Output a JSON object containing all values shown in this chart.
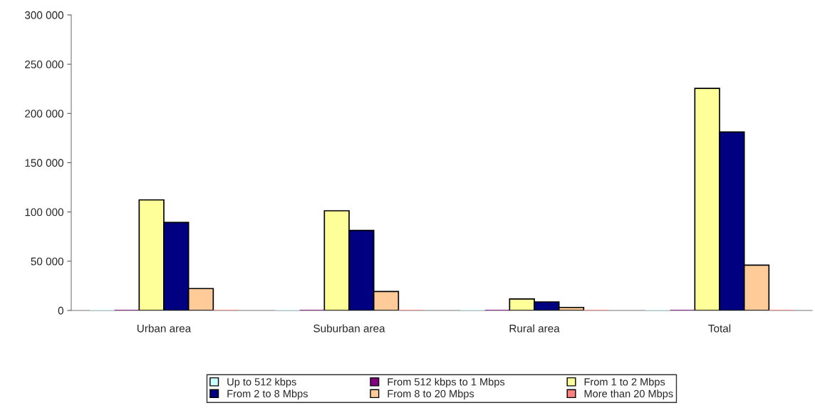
{
  "chart_data": {
    "type": "bar",
    "categories": [
      "Urban area",
      "Suburban area",
      "Rural area",
      "Total"
    ],
    "series": [
      {
        "name": "Up to 512 kbps",
        "color": "#ccffff",
        "values": [
          0,
          0,
          0,
          0
        ]
      },
      {
        "name": "From 512 kbps to 1 Mbps",
        "color": "#800080",
        "values": [
          0,
          0,
          0,
          0
        ]
      },
      {
        "name": "From 1 to 2 Mbps",
        "color": "#ffff99",
        "values": [
          112200,
          101200,
          11600,
          225500
        ]
      },
      {
        "name": "From 2 to 8 Mbps",
        "color": "#000080",
        "values": [
          89400,
          81200,
          8700,
          181200
        ]
      },
      {
        "name": "From 8 to 20 Mbps",
        "color": "#ffcc99",
        "values": [
          22200,
          19300,
          3100,
          46000
        ]
      },
      {
        "name": "More than 20 Mbps",
        "color": "#ff8080",
        "values": [
          0,
          0,
          0,
          0
        ]
      }
    ],
    "ylim": [
      0,
      300000
    ],
    "yticks": [
      {
        "value": 0,
        "label": "0"
      },
      {
        "value": 50000,
        "label": "50 000"
      },
      {
        "value": 100000,
        "label": "100 000"
      },
      {
        "value": 150000,
        "label": "150 000"
      },
      {
        "value": 200000,
        "label": "200 000"
      },
      {
        "value": 250000,
        "label": "250 000"
      },
      {
        "value": 300000,
        "label": "300 000"
      }
    ],
    "grid": false,
    "legend": "bottom"
  }
}
